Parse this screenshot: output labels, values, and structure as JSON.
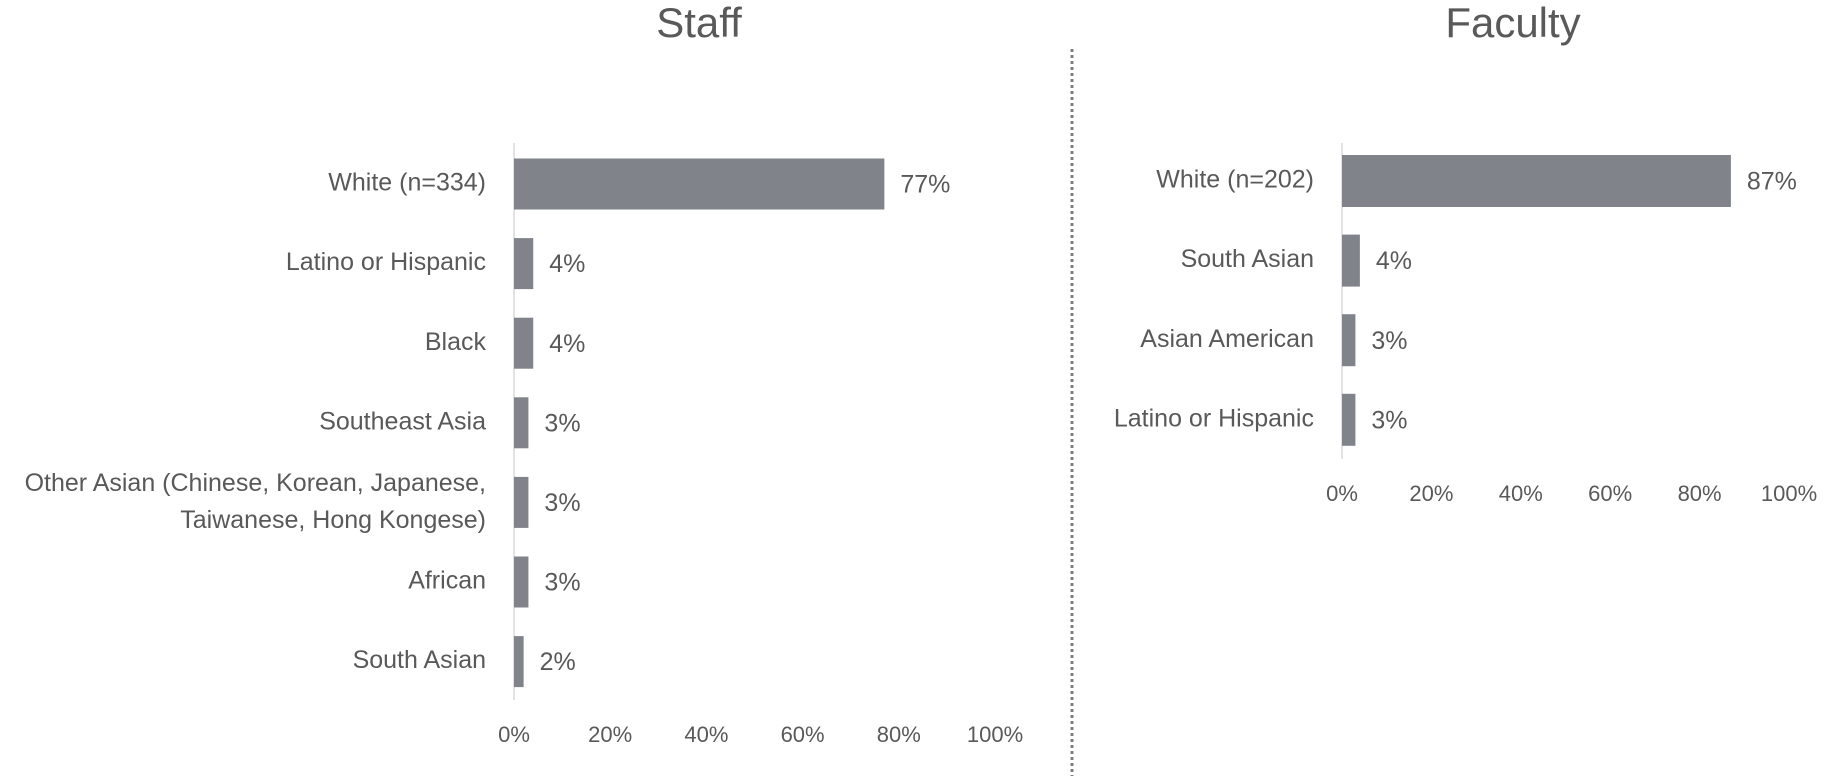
{
  "chart_data": [
    {
      "type": "barh",
      "title": "Staff",
      "categories": [
        "White (n=334)",
        "Latino or Hispanic",
        "Black",
        "Southeast Asia",
        "Other Asian (Chinese, Korean, Japanese, Taiwanese, Hong Kongese)",
        "African",
        "South Asian"
      ],
      "values": [
        77,
        4,
        4,
        3,
        3,
        3,
        2
      ],
      "value_labels": [
        "77%",
        "4%",
        "4%",
        "3%",
        "3%",
        "3%",
        "2%"
      ],
      "color": "#808389",
      "xlim": [
        0,
        100
      ],
      "xticks": [
        {
          "value": 0,
          "label": "0%"
        },
        {
          "value": 20,
          "label": "20%"
        },
        {
          "value": 40,
          "label": "40%"
        },
        {
          "value": 60,
          "label": "60%"
        },
        {
          "value": 80,
          "label": "80%"
        },
        {
          "value": 100,
          "label": "100%"
        }
      ]
    },
    {
      "type": "barh",
      "title": "Faculty",
      "categories": [
        "White (n=202)",
        "South Asian",
        "Asian American",
        "Latino or Hispanic"
      ],
      "values": [
        87,
        4,
        3,
        3
      ],
      "value_labels": [
        "87%",
        "4%",
        "3%",
        "3%"
      ],
      "color": "#808389",
      "xlim": [
        0,
        100
      ],
      "xticks": [
        {
          "value": 0,
          "label": "0%"
        },
        {
          "value": 20,
          "label": "20%"
        },
        {
          "value": 40,
          "label": "40%"
        },
        {
          "value": 60,
          "label": "60%"
        },
        {
          "value": 80,
          "label": "80%"
        },
        {
          "value": 100,
          "label": "100%"
        }
      ]
    }
  ]
}
